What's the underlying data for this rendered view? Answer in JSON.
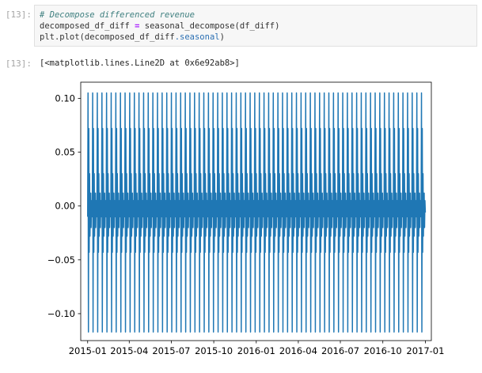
{
  "cells": [
    {
      "prompt": "[13]:",
      "code": {
        "comment": "# Decompose differenced revenue",
        "line2_a": "decomposed_df_diff",
        "line2_op": " = ",
        "line2_b": "seasonal_decompose(df_diff)",
        "line3_a": "plt",
        "line3_b": ".plot(decomposed_df_diff",
        "line3_c": ".seasonal",
        "line3_d": ")"
      }
    },
    {
      "prompt": "[13]:",
      "output_text": "[<matplotlib.lines.Line2D at 0x6e92ab8>]"
    }
  ],
  "chart_data": {
    "type": "line",
    "title": "",
    "xlabel": "",
    "ylabel": "",
    "x_tick_labels": [
      "2015-01",
      "2015-04",
      "2015-07",
      "2015-10",
      "2016-01",
      "2016-04",
      "2016-07",
      "2016-10",
      "2017-01"
    ],
    "y_tick_labels": [
      "0.10",
      "0.05",
      "0.00",
      "−0.05",
      "−0.10"
    ],
    "y_ticks": [
      0.1,
      0.05,
      0.0,
      -0.05,
      -0.1
    ],
    "ylim": [
      -0.125,
      0.115
    ],
    "xlim": [
      "2014-12-17",
      "2017-01-14"
    ],
    "x_range": [
      "2015-01-01",
      "2017-01-01"
    ],
    "series": [
      {
        "color": "#1f77b4",
        "seasonal_pattern": [
          -0.01,
          0.105,
          -0.117,
          0.072,
          -0.043,
          0.03,
          -0.028,
          0.0,
          0.012,
          -0.02,
          0.005,
          -0.006
        ],
        "cycles": 73
      }
    ],
    "grid": false
  }
}
